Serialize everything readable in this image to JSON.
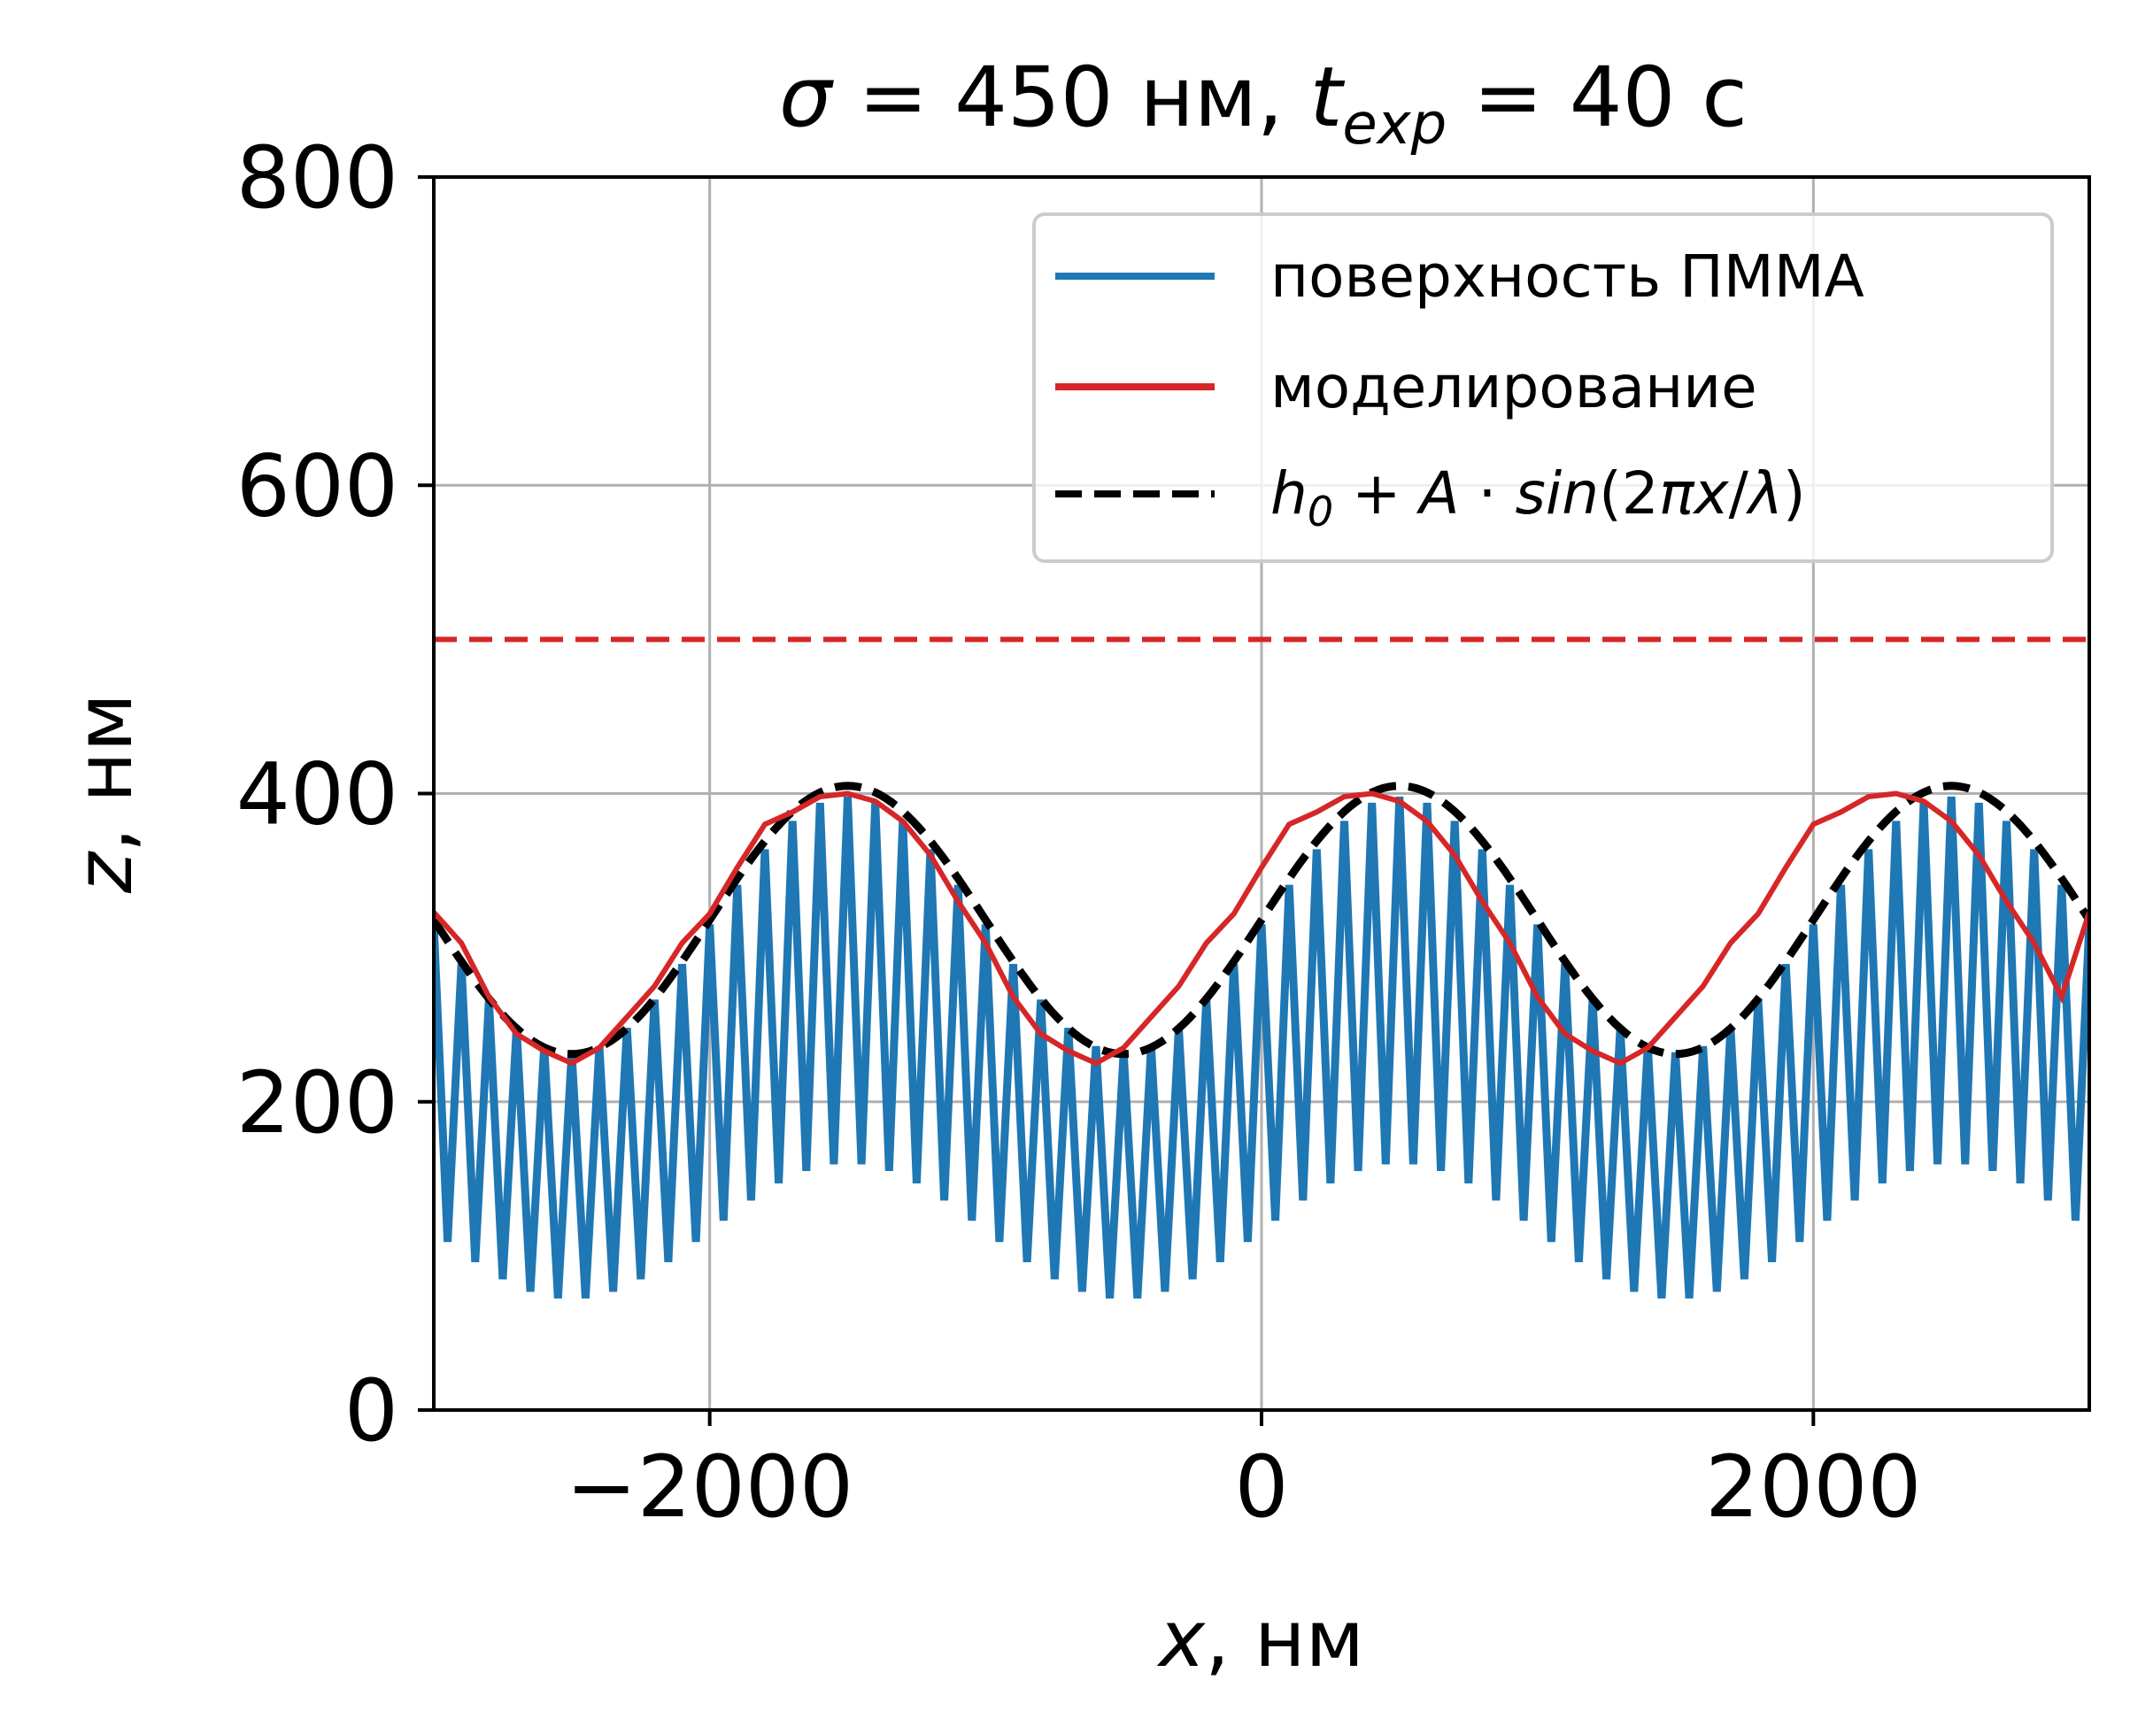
{
  "chart_data": {
    "type": "line",
    "title": "σ = 450 нм, t_exp = 40 с",
    "title_parts": {
      "sigma": "σ",
      "rest1": " = 450 нм, ",
      "t": "t",
      "sub": "exp",
      "rest2": " = 40 с"
    },
    "xlabel": "x, нм",
    "xlabel_parts": {
      "var": "x",
      "unit": ", нм"
    },
    "ylabel": "z, нм",
    "ylabel_parts": {
      "var": "z",
      "unit": ", нм"
    },
    "xlim": [
      -3000,
      3000
    ],
    "ylim": [
      0,
      800
    ],
    "xticks": [
      -2000,
      0,
      2000
    ],
    "xtick_labels": [
      "−2000",
      "0",
      "2000"
    ],
    "yticks": [
      0,
      200,
      400,
      600,
      800
    ],
    "ytick_labels": [
      "0",
      "200",
      "400",
      "600",
      "800"
    ],
    "grid": true,
    "legend_position": "top-right",
    "series": [
      {
        "name": "поверхность ПММА",
        "color": "#1f77b4",
        "style": "solid",
        "description_values": {
          "tooth_period_nm": 100,
          "crest_top_nm": 398,
          "crest_bottom_nm": 160,
          "trough_top_nm": 232,
          "trough_bottom_nm": 72
        }
      },
      {
        "name": "моделирование",
        "color": "#d62728",
        "style": "solid",
        "x": [
          -3000,
          -2900,
          -2800,
          -2700,
          -2600,
          -2500,
          -2400,
          -2300,
          -2200,
          -2100,
          -2000,
          -1900,
          -1800,
          -1700,
          -1600,
          -1500,
          -1400,
          -1300,
          -1200,
          -1100,
          -1000,
          -900,
          -800,
          -700,
          -600,
          -500,
          -400,
          -300,
          -200,
          -100,
          0,
          100,
          200,
          300,
          400,
          500,
          600,
          700,
          800,
          900,
          1000,
          1100,
          1200,
          1300,
          1400,
          1500,
          1600,
          1700,
          1800,
          1900,
          2000,
          2100,
          2200,
          2300,
          2400,
          2500,
          2600,
          2700,
          2800,
          2900,
          3000
        ],
        "y": [
          323,
          303,
          268,
          244,
          233,
          225,
          235,
          255,
          275,
          303,
          322,
          352,
          380,
          388,
          398,
          400,
          395,
          382,
          360,
          330,
          303,
          268,
          244,
          233,
          225,
          235,
          255,
          275,
          303,
          322,
          352,
          380,
          388,
          398,
          400,
          395,
          382,
          360,
          330,
          303,
          268,
          244,
          233,
          225,
          235,
          255,
          275,
          303,
          322,
          352,
          380,
          388,
          398,
          400,
          395,
          382,
          360,
          330,
          303,
          268,
          323
        ]
      },
      {
        "name": "h_0 + A·sin(2πx/λ)",
        "color": "#000000",
        "style": "dashed",
        "h0": 318,
        "A": 87,
        "lambda_nm": 2000
      }
    ],
    "hlines": [
      {
        "y": 500,
        "color": "#d62728",
        "style": "dashed"
      }
    ]
  }
}
